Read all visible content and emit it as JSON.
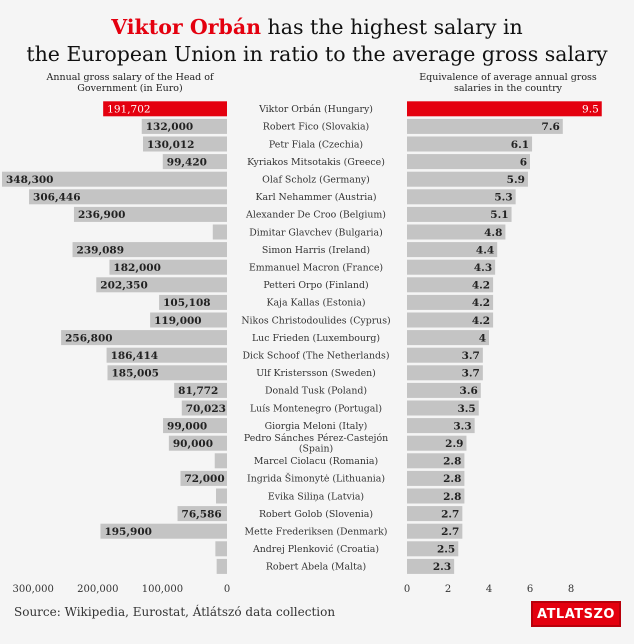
{
  "header": {
    "title_highlight": "Viktor Orbán",
    "title_line1_rest": " has the highest salary in",
    "title_line2": "the European Union in ratio to the average gross salary"
  },
  "left_panel": {
    "subtitle_line1": "Annual gross salary of the Head of",
    "subtitle_line2": "Government (in Euro)"
  },
  "right_panel": {
    "subtitle_line1": "Equivalence of average annual gross",
    "subtitle_line2": "salaries in the country"
  },
  "footer": {
    "source": "Source: Wikipedia, Eurostat, Átlátszó data collection",
    "logo": "ATLATSZO"
  },
  "colors": {
    "highlight": "#e4000f",
    "bar": "#c4c4c4",
    "background": "#f5f5f5"
  },
  "chart_data": [
    {
      "type": "bar",
      "orientation": "horizontal",
      "direction": "right-to-left",
      "title": "Annual gross salary of the Head of Government (in Euro)",
      "xlim": [
        0,
        350000
      ],
      "xticks": [
        "300,000",
        "200,000",
        "100,000",
        "0"
      ],
      "xtick_values": [
        300000,
        200000,
        100000,
        0
      ],
      "highlight_index": 0,
      "categories": [
        "Viktor Orbán (Hungary)",
        "Robert Fico (Slovakia)",
        "Petr Fiala (Czechia)",
        "Kyriakos Mitsotakis (Greece)",
        "Olaf Scholz (Germany)",
        "Karl Nehammer (Austria)",
        "Alexander De Croo (Belgium)",
        "Dimitar Glavchev (Bulgaria)",
        "Simon Harris (Ireland)",
        "Emmanuel Macron (France)",
        "Petteri Orpo (Finland)",
        "Kaja Kallas (Estonia)",
        "Nikos Christodoulides (Cyprus)",
        "Luc Frieden (Luxembourg)",
        "Dick Schoof (The Netherlands)",
        "Ulf Kristersson (Sweden)",
        "Donald Tusk (Poland)",
        "Luís Montenegro (Portugal)",
        "Giorgia Meloni (Italy)",
        "Pedro Sánches Pérez-Castejón (Spain)",
        "Marcel Ciolacu (Romania)",
        "Ingrida Šimonytė (Lithuania)",
        "Evika Siliņa (Latvia)",
        "Robert Golob (Slovenia)",
        "Mette Frederiksen (Denmark)",
        "Andrej Plenković (Croatia)",
        "Robert Abela (Malta)"
      ],
      "values": [
        191702,
        132000,
        130012,
        99420,
        348300,
        306446,
        236900,
        22000,
        239089,
        182000,
        202350,
        105108,
        119000,
        256800,
        186414,
        185005,
        81772,
        70023,
        99000,
        90000,
        19000,
        72000,
        17000,
        76586,
        195900,
        18000,
        16000
      ],
      "labels": [
        "191,702",
        "132,000",
        "130,012",
        "99,420",
        "348,300",
        "306,446",
        "236,900",
        "",
        "239,089",
        "182,000",
        "202,350",
        "105,108",
        "119,000",
        "256,800",
        "186,414",
        "185,005",
        "81,772",
        "70,023",
        "99,000",
        "90,000",
        "",
        "72,000",
        "",
        "76,586",
        "195,900",
        "",
        ""
      ]
    },
    {
      "type": "bar",
      "orientation": "horizontal",
      "title": "Equivalence of average annual gross salaries in the country",
      "xlim": [
        0,
        9.7
      ],
      "xticks": [
        "0",
        "2",
        "4",
        "6",
        "8"
      ],
      "xtick_values": [
        0,
        2,
        4,
        6,
        8
      ],
      "highlight_index": 0,
      "values": [
        9.5,
        7.6,
        6.1,
        6,
        5.9,
        5.3,
        5.1,
        4.8,
        4.4,
        4.3,
        4.2,
        4.2,
        4.2,
        4,
        3.7,
        3.7,
        3.6,
        3.5,
        3.3,
        2.9,
        2.8,
        2.8,
        2.8,
        2.7,
        2.7,
        2.5,
        2.3
      ],
      "labels": [
        "9.5",
        "7.6",
        "6.1",
        "6",
        "5.9",
        "5.3",
        "5.1",
        "4.8",
        "4.4",
        "4.3",
        "4.2",
        "4.2",
        "4.2",
        "4",
        "3.7",
        "3.7",
        "3.6",
        "3.5",
        "3.3",
        "2.9",
        "2.8",
        "2.8",
        "2.8",
        "2.7",
        "2.7",
        "2.5",
        "2.3"
      ]
    }
  ]
}
